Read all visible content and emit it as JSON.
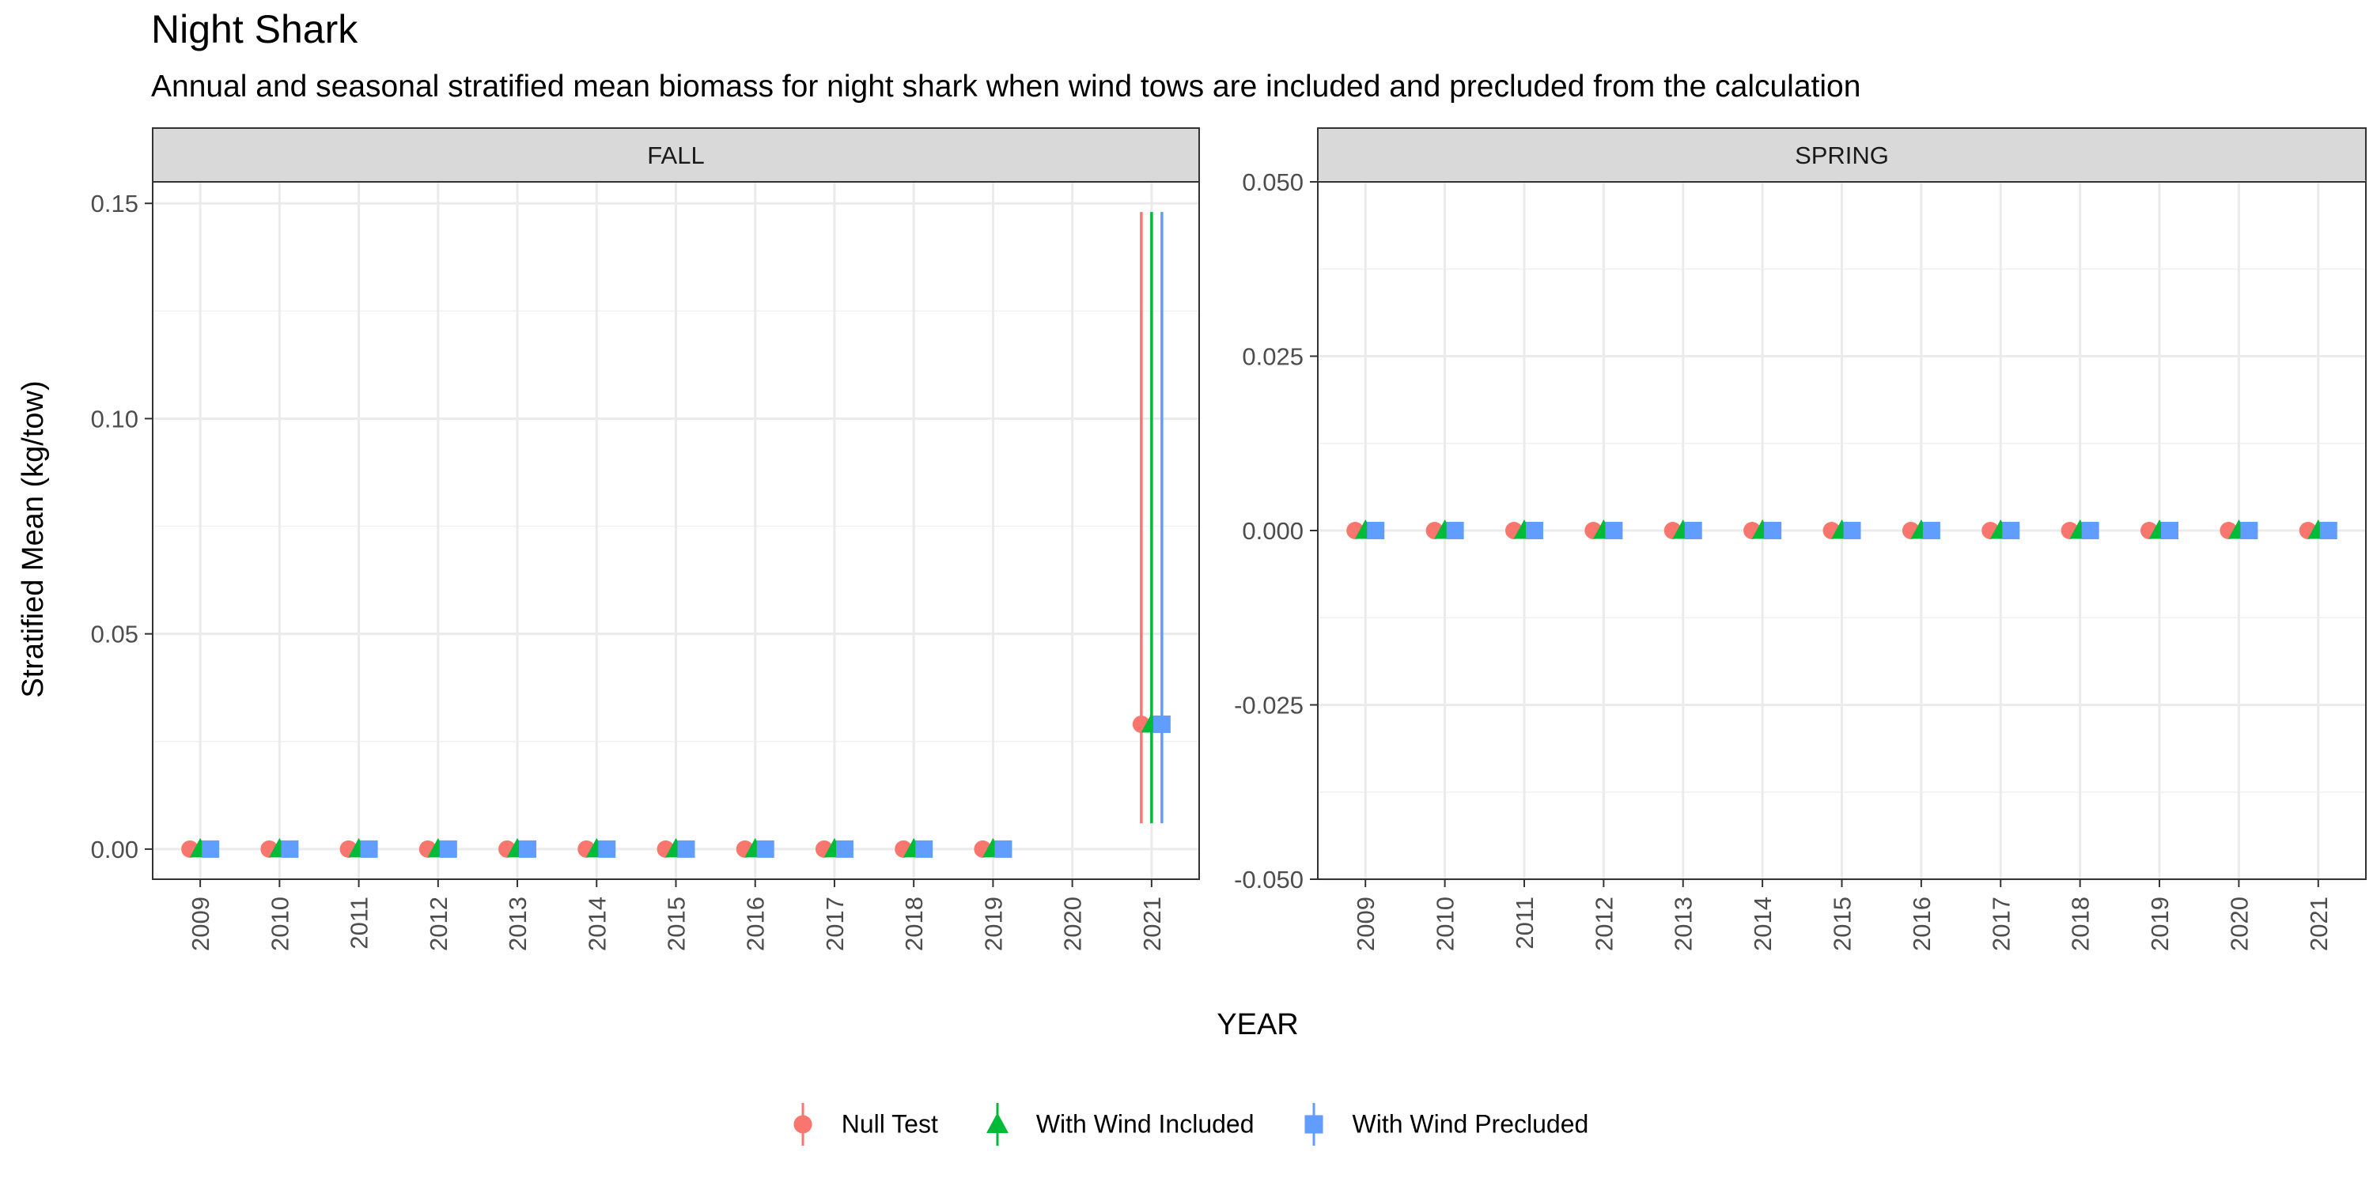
{
  "chart_data": {
    "type": "scatter",
    "title": "Night Shark",
    "subtitle": "Annual and seasonal stratified mean biomass for night shark when wind tows are included and precluded from the calculation",
    "xlabel": "YEAR",
    "ylabel": "Stratified Mean (kg/tow)",
    "legend_position": "bottom",
    "grid": true,
    "series_styles": [
      {
        "name": "Null Test",
        "color": "#F8766D",
        "shape": "circle"
      },
      {
        "name": "With Wind Included",
        "color": "#00BA38",
        "shape": "triangle"
      },
      {
        "name": "With Wind Precluded",
        "color": "#619CFF",
        "shape": "square"
      }
    ],
    "panels": [
      {
        "strip": "FALL",
        "x": [
          2009,
          2010,
          2011,
          2012,
          2013,
          2014,
          2015,
          2016,
          2017,
          2018,
          2019,
          2020,
          2021
        ],
        "ylim": [
          -0.007,
          0.155
        ],
        "yticks": [
          0.0,
          0.05,
          0.1,
          0.15
        ],
        "ytick_labels": [
          "0.00",
          "0.05",
          "0.10",
          "0.15"
        ],
        "series": [
          {
            "name": "Null Test",
            "values": [
              0,
              0,
              0,
              0,
              0,
              0,
              0,
              0,
              0,
              0,
              0,
              null,
              0.029
            ],
            "lower": [
              null,
              null,
              null,
              null,
              null,
              null,
              null,
              null,
              null,
              null,
              null,
              null,
              0.006
            ],
            "upper": [
              null,
              null,
              null,
              null,
              null,
              null,
              null,
              null,
              null,
              null,
              null,
              null,
              0.148
            ]
          },
          {
            "name": "With Wind Included",
            "values": [
              0,
              0,
              0,
              0,
              0,
              0,
              0,
              0,
              0,
              0,
              0,
              null,
              0.029
            ],
            "lower": [
              null,
              null,
              null,
              null,
              null,
              null,
              null,
              null,
              null,
              null,
              null,
              null,
              0.006
            ],
            "upper": [
              null,
              null,
              null,
              null,
              null,
              null,
              null,
              null,
              null,
              null,
              null,
              null,
              0.148
            ]
          },
          {
            "name": "With Wind Precluded",
            "values": [
              0,
              0,
              0,
              0,
              0,
              0,
              0,
              0,
              0,
              0,
              0,
              null,
              0.029
            ],
            "lower": [
              null,
              null,
              null,
              null,
              null,
              null,
              null,
              null,
              null,
              null,
              null,
              null,
              0.006
            ],
            "upper": [
              null,
              null,
              null,
              null,
              null,
              null,
              null,
              null,
              null,
              null,
              null,
              null,
              0.148
            ]
          }
        ]
      },
      {
        "strip": "SPRING",
        "x": [
          2009,
          2010,
          2011,
          2012,
          2013,
          2014,
          2015,
          2016,
          2017,
          2018,
          2019,
          2020,
          2021
        ],
        "ylim": [
          -0.05,
          0.05
        ],
        "yticks": [
          -0.05,
          -0.025,
          0,
          0.025,
          0.05
        ],
        "ytick_labels": [
          "-0.050",
          "-0.025",
          "0.000",
          "0.025",
          "0.050"
        ],
        "series": [
          {
            "name": "Null Test",
            "values": [
              0,
              0,
              0,
              0,
              0,
              0,
              0,
              0,
              0,
              0,
              0,
              0,
              0
            ]
          },
          {
            "name": "With Wind Included",
            "values": [
              0,
              0,
              0,
              0,
              0,
              0,
              0,
              0,
              0,
              0,
              0,
              0,
              0
            ]
          },
          {
            "name": "With Wind Precluded",
            "values": [
              0,
              0,
              0,
              0,
              0,
              0,
              0,
              0,
              0,
              0,
              0,
              0,
              0
            ]
          }
        ]
      }
    ]
  }
}
